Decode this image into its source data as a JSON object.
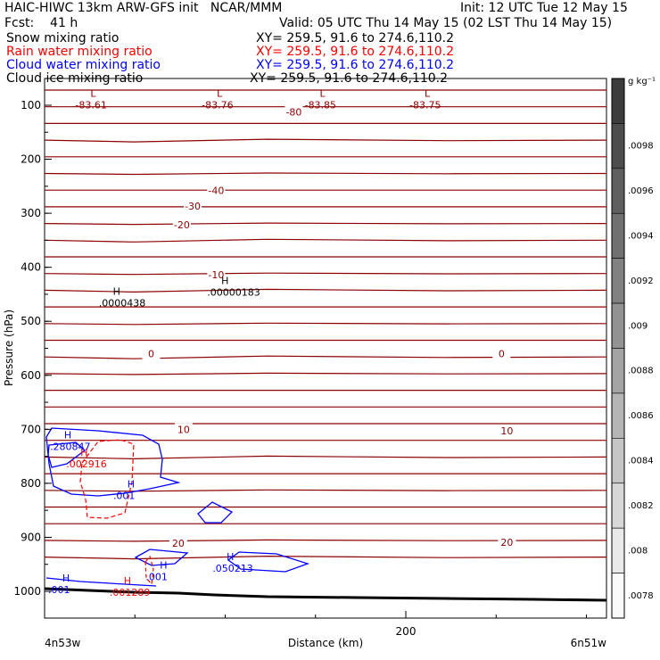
{
  "header": {
    "model_line": "HAIC-HIWC 13km ARW-GFS init   NCAR/MMM",
    "init_line": "Init: 12 UTC Tue 12 May 15",
    "fcst_line": "Fcst:    41 h",
    "valid_line": "Valid: 05 UTC Thu 14 May 15 (02 LST Thu 14 May 15)",
    "fields": [
      {
        "name": "Snow mixing ratio",
        "xy": "XY= 259.5, 91.6 to 274.6,110.2",
        "color": "#000000"
      },
      {
        "name": "Rain water mixing ratio",
        "xy": "XY= 259.5, 91.6 to 274.6,110.2",
        "color": "#ff0000"
      },
      {
        "name": "Cloud water mixing ratio",
        "xy": "XY= 259.5, 91.6 to 274.6,110.2",
        "color": "#0000ff"
      },
      {
        "name": "Cloud ice mixing ratio",
        "xy": "XY= 259.5, 91.6 to 274.6,110.2",
        "color": "#000000"
      }
    ]
  },
  "chart_data": {
    "type": "contour",
    "xlabel": "Distance (km)",
    "ylabel": "Pressure (hPa)",
    "x_ticks": [
      200
    ],
    "x_left_label": "4n53w",
    "x_right_label": "6n51w",
    "y_ticks": [
      100,
      200,
      300,
      400,
      500,
      600,
      700,
      800,
      900,
      1000
    ],
    "temperature_contour_labels": [
      {
        "text": "-80",
        "x": 138,
        "p": 112
      },
      {
        "text": "-40",
        "x": 95,
        "p": 258
      },
      {
        "text": "-30",
        "x": 82,
        "p": 287
      },
      {
        "text": "-20",
        "x": 76,
        "p": 321
      },
      {
        "text": "-10",
        "x": 95,
        "p": 414
      },
      {
        "text": "0",
        "x": 59,
        "p": 560
      },
      {
        "text": "0",
        "x": 253,
        "p": 560
      },
      {
        "text": "10",
        "x": 77,
        "p": 700
      },
      {
        "text": "10",
        "x": 256,
        "p": 703
      },
      {
        "text": "20",
        "x": 74,
        "p": 911
      },
      {
        "text": "20",
        "x": 256,
        "p": 909
      }
    ],
    "extrema": [
      {
        "type": "L",
        "value": "-83.61",
        "x": 17,
        "p": 84,
        "color": "#8b0000"
      },
      {
        "type": "L",
        "value": "-83.76",
        "x": 87,
        "p": 84,
        "color": "#8b0000"
      },
      {
        "type": "L",
        "value": "-83.85",
        "x": 144,
        "p": 84,
        "color": "#8b0000"
      },
      {
        "type": "L",
        "value": "-83.75",
        "x": 202,
        "p": 84,
        "color": "#8b0000"
      },
      {
        "type": "H",
        "value": ".0000438",
        "x": 30,
        "p": 451,
        "color": "#000000"
      },
      {
        "type": "H",
        "value": ".00000183",
        "x": 90,
        "p": 431,
        "color": "#000000"
      },
      {
        "type": "H",
        "value": ".280847",
        "x": 3,
        "p": 717,
        "color": "#0000ff"
      },
      {
        "type": "H",
        "value": ".002916",
        "x": 12,
        "p": 749,
        "color": "#ff0000"
      },
      {
        "type": "H",
        "value": ".001",
        "x": 38,
        "p": 808,
        "color": "#0000ff"
      },
      {
        "type": "H",
        "value": ".001",
        "x": 56,
        "p": 958,
        "color": "#0000ff"
      },
      {
        "type": "H",
        "value": ".050213",
        "x": 93,
        "p": 942,
        "color": "#0000ff"
      },
      {
        "type": "H",
        "value": ".001",
        "x": 2,
        "p": 982,
        "color": "#0000ff"
      },
      {
        "type": "H",
        "value": ".001289",
        "x": 36,
        "p": 987,
        "color": "#ff0000"
      }
    ],
    "colorbar": {
      "unit": "g kg⁻¹",
      "labels": [
        ".0098",
        ".0096",
        ".0094",
        ".0092",
        ".009",
        ".0088",
        ".0086",
        ".0084",
        ".0082",
        ".008",
        ".0078"
      ]
    }
  },
  "colors": {
    "temperature": "#8b0000",
    "rain": "#ff0000",
    "cloud_water": "#0000ff",
    "terrain": "#000000"
  }
}
